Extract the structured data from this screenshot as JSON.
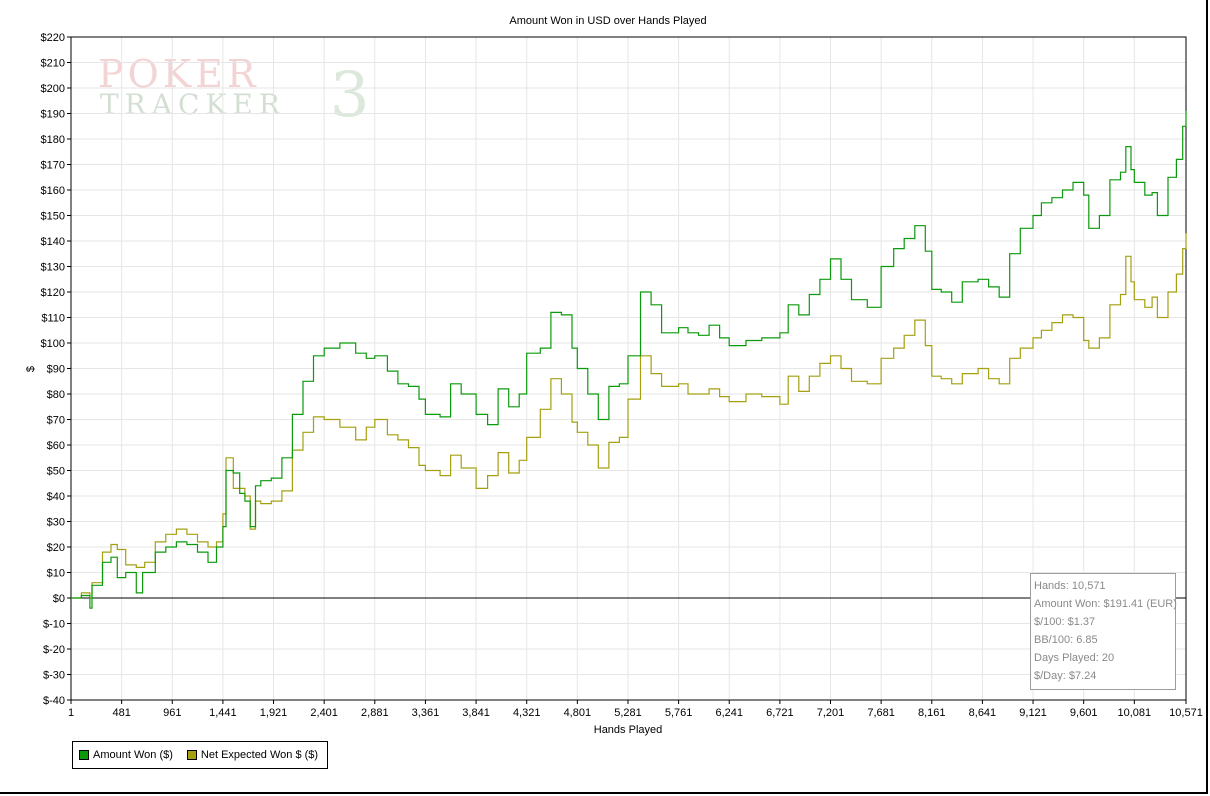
{
  "watermark": {
    "top": "POKER",
    "bottom": "TRACKER",
    "number": "3"
  },
  "stats": {
    "hands": "Hands: 10,571",
    "amount_won": "Amount Won: $191.41 (EUR)",
    "per_100": "$/100: $1.37",
    "bb_100": "BB/100: 6.85",
    "days_played": "Days Played: 20",
    "per_day": "$/Day: $7.24"
  },
  "legend": [
    {
      "label": "Amount Won ($)",
      "color": "#0b9a0b"
    },
    {
      "label": "Net Expected Won $ ($)",
      "color": "#a4a010"
    }
  ],
  "colors": {
    "grid": "#e6e6e6",
    "zero_line": "#000000",
    "axis": "#000000"
  },
  "chart_data": {
    "type": "line",
    "title": "Amount Won in USD over Hands Played",
    "xlabel": "Hands Played",
    "ylabel": "$",
    "xlim": [
      1,
      10571
    ],
    "ylim": [
      -40,
      220
    ],
    "x_ticks": [
      1,
      481,
      961,
      1441,
      1921,
      2401,
      2881,
      3361,
      3841,
      4321,
      4801,
      5281,
      5761,
      6241,
      6721,
      7201,
      7681,
      8161,
      8641,
      9121,
      9601,
      10081,
      10571
    ],
    "x_tick_labels": [
      "1",
      "481",
      "961",
      "1,441",
      "1,921",
      "2,401",
      "2,881",
      "3,361",
      "3,841",
      "4,321",
      "4,801",
      "5,281",
      "5,761",
      "6,241",
      "6,721",
      "7,201",
      "7,681",
      "8,161",
      "8,641",
      "9,121",
      "9,601",
      "10,081",
      "10,571"
    ],
    "y_ticks": [
      220,
      210,
      200,
      190,
      180,
      170,
      160,
      150,
      140,
      130,
      120,
      110,
      100,
      90,
      80,
      70,
      60,
      50,
      40,
      30,
      20,
      10,
      0,
      -10,
      -20,
      -30,
      -40
    ],
    "y_tick_labels": [
      "$220",
      "$210",
      "$200",
      "$190",
      "$180",
      "$170",
      "$160",
      "$150",
      "$140",
      "$130",
      "$120",
      "$110",
      "$100",
      "$90",
      "$80",
      "$70",
      "$60",
      "$50",
      "$40",
      "$30",
      "$20",
      "$10",
      "$0",
      "$-10",
      "$-20",
      "$-30",
      "$-40"
    ],
    "grid": true,
    "legend_position": "bottom-left",
    "series": [
      {
        "name": "Amount Won ($)",
        "color": "#0b9a0b",
        "points": [
          [
            1,
            0
          ],
          [
            100,
            1
          ],
          [
            180,
            -4
          ],
          [
            200,
            5
          ],
          [
            300,
            14
          ],
          [
            380,
            16
          ],
          [
            440,
            8
          ],
          [
            520,
            10
          ],
          [
            620,
            2
          ],
          [
            680,
            10
          ],
          [
            800,
            18
          ],
          [
            900,
            20
          ],
          [
            1000,
            22
          ],
          [
            1100,
            21
          ],
          [
            1200,
            18
          ],
          [
            1300,
            14
          ],
          [
            1380,
            20
          ],
          [
            1441,
            28
          ],
          [
            1470,
            50
          ],
          [
            1540,
            49
          ],
          [
            1600,
            41
          ],
          [
            1650,
            38
          ],
          [
            1700,
            28
          ],
          [
            1750,
            44
          ],
          [
            1800,
            46
          ],
          [
            1900,
            47
          ],
          [
            2000,
            55
          ],
          [
            2100,
            72
          ],
          [
            2200,
            85
          ],
          [
            2300,
            95
          ],
          [
            2401,
            98
          ],
          [
            2550,
            100
          ],
          [
            2700,
            96
          ],
          [
            2800,
            94
          ],
          [
            2881,
            95
          ],
          [
            3000,
            89
          ],
          [
            3100,
            84
          ],
          [
            3200,
            83
          ],
          [
            3300,
            78
          ],
          [
            3361,
            72
          ],
          [
            3500,
            71
          ],
          [
            3600,
            84
          ],
          [
            3700,
            80
          ],
          [
            3841,
            72
          ],
          [
            3950,
            68
          ],
          [
            4050,
            82
          ],
          [
            4150,
            75
          ],
          [
            4250,
            80
          ],
          [
            4321,
            96
          ],
          [
            4450,
            98
          ],
          [
            4550,
            112
          ],
          [
            4650,
            111
          ],
          [
            4750,
            98
          ],
          [
            4801,
            90
          ],
          [
            4900,
            80
          ],
          [
            5000,
            70
          ],
          [
            5100,
            83
          ],
          [
            5200,
            84
          ],
          [
            5281,
            95
          ],
          [
            5400,
            120
          ],
          [
            5500,
            115
          ],
          [
            5600,
            104
          ],
          [
            5761,
            106
          ],
          [
            5850,
            104
          ],
          [
            5950,
            103
          ],
          [
            6050,
            107
          ],
          [
            6150,
            102
          ],
          [
            6241,
            99
          ],
          [
            6400,
            101
          ],
          [
            6550,
            102
          ],
          [
            6721,
            104
          ],
          [
            6800,
            115
          ],
          [
            6900,
            111
          ],
          [
            7000,
            119
          ],
          [
            7100,
            125
          ],
          [
            7201,
            133
          ],
          [
            7300,
            125
          ],
          [
            7400,
            117
          ],
          [
            7550,
            114
          ],
          [
            7681,
            130
          ],
          [
            7800,
            137
          ],
          [
            7900,
            141
          ],
          [
            8000,
            146
          ],
          [
            8100,
            136
          ],
          [
            8161,
            121
          ],
          [
            8250,
            120
          ],
          [
            8350,
            116
          ],
          [
            8450,
            124
          ],
          [
            8600,
            125
          ],
          [
            8700,
            122
          ],
          [
            8800,
            118
          ],
          [
            8900,
            135
          ],
          [
            9000,
            145
          ],
          [
            9121,
            150
          ],
          [
            9200,
            155
          ],
          [
            9300,
            157
          ],
          [
            9400,
            160
          ],
          [
            9500,
            163
          ],
          [
            9601,
            158
          ],
          [
            9650,
            145
          ],
          [
            9750,
            150
          ],
          [
            9850,
            164
          ],
          [
            9950,
            167
          ],
          [
            10000,
            177
          ],
          [
            10050,
            168
          ],
          [
            10081,
            163
          ],
          [
            10180,
            158
          ],
          [
            10250,
            159
          ],
          [
            10300,
            150
          ],
          [
            10400,
            165
          ],
          [
            10480,
            172
          ],
          [
            10540,
            185
          ],
          [
            10571,
            191
          ]
        ]
      },
      {
        "name": "Net Expected Won $ ($)",
        "color": "#a4a010",
        "points": [
          [
            1,
            0
          ],
          [
            100,
            2
          ],
          [
            180,
            0
          ],
          [
            200,
            6
          ],
          [
            300,
            18
          ],
          [
            380,
            21
          ],
          [
            440,
            19
          ],
          [
            520,
            13
          ],
          [
            620,
            12
          ],
          [
            700,
            14
          ],
          [
            800,
            22
          ],
          [
            900,
            25
          ],
          [
            1000,
            27
          ],
          [
            1100,
            25
          ],
          [
            1200,
            22
          ],
          [
            1300,
            20
          ],
          [
            1380,
            22
          ],
          [
            1441,
            33
          ],
          [
            1470,
            55
          ],
          [
            1540,
            43
          ],
          [
            1600,
            43
          ],
          [
            1650,
            40
          ],
          [
            1700,
            27
          ],
          [
            1750,
            38
          ],
          [
            1800,
            37
          ],
          [
            1900,
            38
          ],
          [
            2000,
            42
          ],
          [
            2100,
            58
          ],
          [
            2200,
            65
          ],
          [
            2300,
            71
          ],
          [
            2401,
            70
          ],
          [
            2550,
            67
          ],
          [
            2700,
            62
          ],
          [
            2800,
            67
          ],
          [
            2881,
            70
          ],
          [
            3000,
            64
          ],
          [
            3100,
            62
          ],
          [
            3200,
            59
          ],
          [
            3300,
            52
          ],
          [
            3361,
            50
          ],
          [
            3500,
            48
          ],
          [
            3600,
            56
          ],
          [
            3700,
            51
          ],
          [
            3841,
            43
          ],
          [
            3950,
            48
          ],
          [
            4050,
            57
          ],
          [
            4150,
            49
          ],
          [
            4250,
            54
          ],
          [
            4321,
            63
          ],
          [
            4450,
            74
          ],
          [
            4550,
            86
          ],
          [
            4650,
            80
          ],
          [
            4750,
            69
          ],
          [
            4801,
            65
          ],
          [
            4900,
            60
          ],
          [
            5000,
            51
          ],
          [
            5100,
            61
          ],
          [
            5200,
            63
          ],
          [
            5281,
            78
          ],
          [
            5400,
            95
          ],
          [
            5500,
            88
          ],
          [
            5600,
            83
          ],
          [
            5761,
            84
          ],
          [
            5850,
            80
          ],
          [
            5950,
            80
          ],
          [
            6050,
            82
          ],
          [
            6150,
            79
          ],
          [
            6241,
            77
          ],
          [
            6400,
            80
          ],
          [
            6550,
            79
          ],
          [
            6721,
            76
          ],
          [
            6800,
            87
          ],
          [
            6900,
            81
          ],
          [
            7000,
            87
          ],
          [
            7100,
            92
          ],
          [
            7201,
            95
          ],
          [
            7300,
            90
          ],
          [
            7400,
            85
          ],
          [
            7550,
            84
          ],
          [
            7681,
            94
          ],
          [
            7800,
            98
          ],
          [
            7900,
            103
          ],
          [
            8000,
            109
          ],
          [
            8100,
            99
          ],
          [
            8161,
            87
          ],
          [
            8250,
            86
          ],
          [
            8350,
            84
          ],
          [
            8450,
            88
          ],
          [
            8600,
            90
          ],
          [
            8700,
            86
          ],
          [
            8800,
            84
          ],
          [
            8900,
            94
          ],
          [
            9000,
            98
          ],
          [
            9121,
            102
          ],
          [
            9200,
            105
          ],
          [
            9300,
            108
          ],
          [
            9400,
            111
          ],
          [
            9500,
            110
          ],
          [
            9601,
            101
          ],
          [
            9650,
            98
          ],
          [
            9750,
            102
          ],
          [
            9850,
            115
          ],
          [
            9950,
            119
          ],
          [
            10000,
            134
          ],
          [
            10050,
            124
          ],
          [
            10081,
            117
          ],
          [
            10180,
            114
          ],
          [
            10250,
            118
          ],
          [
            10300,
            110
          ],
          [
            10400,
            120
          ],
          [
            10480,
            127
          ],
          [
            10540,
            137
          ],
          [
            10571,
            143
          ]
        ]
      }
    ]
  }
}
